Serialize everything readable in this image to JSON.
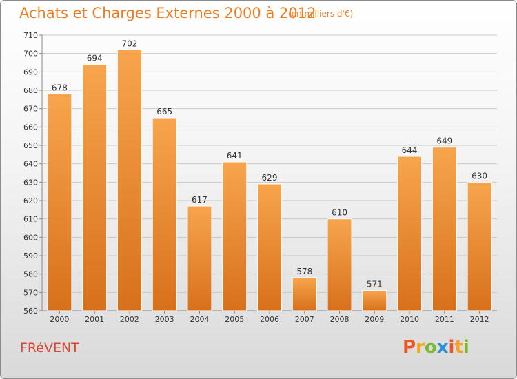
{
  "header": {
    "title": "Achats et Charges Externes 2000 à 2012",
    "unit": "(en milliers d'€)"
  },
  "footer": {
    "commune": "FRéVENT"
  },
  "logo": {
    "letters": [
      "P",
      "r",
      "o",
      "x",
      "i",
      "t",
      "i"
    ],
    "colors": [
      "#e8572a",
      "#f3a51d",
      "#7ab832",
      "#2a8fd6",
      "#e8572a",
      "#f3a51d",
      "#7ab832"
    ]
  },
  "colors": {
    "bar_top": "#f7a54e",
    "bar_bottom": "#d8701b",
    "title": "#ef7d22",
    "commune": "#d9452f"
  },
  "chart_data": {
    "type": "bar",
    "title": "Achats et Charges Externes 2000 à 2012",
    "subtitle": "(en milliers d'€)",
    "categories": [
      "2000",
      "2001",
      "2002",
      "2003",
      "2004",
      "2005",
      "2006",
      "2007",
      "2008",
      "2009",
      "2010",
      "2011",
      "2012"
    ],
    "values": [
      678,
      694,
      702,
      665,
      617,
      641,
      629,
      578,
      610,
      571,
      644,
      649,
      630
    ],
    "ylim": [
      560,
      710
    ],
    "yticks": [
      560,
      570,
      580,
      590,
      600,
      610,
      620,
      630,
      640,
      650,
      660,
      670,
      680,
      690,
      700,
      710
    ],
    "grid": true,
    "data_labels": true
  }
}
